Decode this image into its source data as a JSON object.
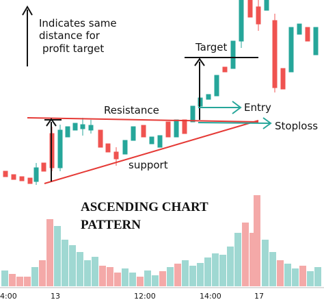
{
  "note_lines": [
    "Indicates same",
    "distance for",
    "profit target"
  ],
  "labels": {
    "target": "Target",
    "resistance": "Resistance",
    "entry": "Entry",
    "stoploss": "Stoploss",
    "support": "support"
  },
  "title_lines": [
    "ASCENDING CHART",
    "PATTERN"
  ],
  "x_axis": [
    "4:00",
    "13",
    "12:00",
    "14:00",
    "17"
  ]
}
